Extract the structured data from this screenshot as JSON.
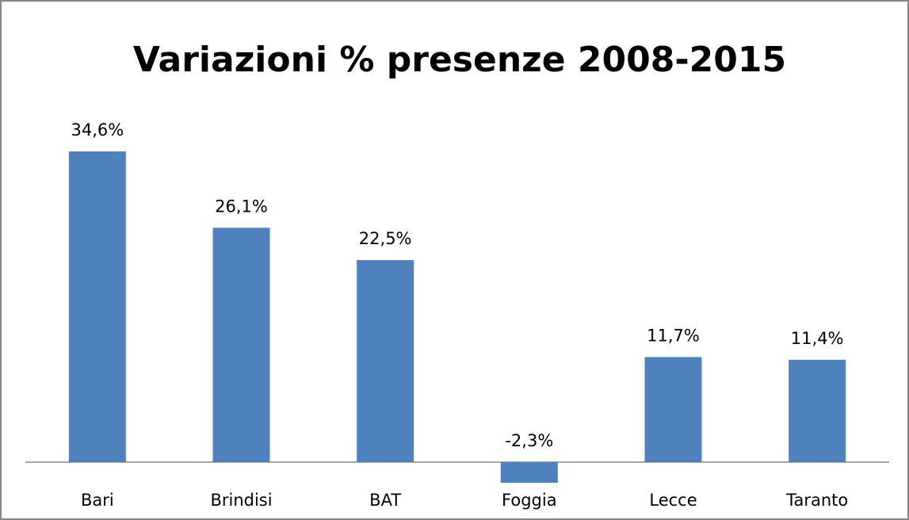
{
  "chart_data": {
    "type": "bar",
    "title": "Variazioni % presenze 2008-2015",
    "categories": [
      "Bari",
      "Brindisi",
      "BAT",
      "Foggia",
      "Lecce",
      "Taranto"
    ],
    "values": [
      34.6,
      26.1,
      22.5,
      -2.3,
      11.7,
      11.4
    ],
    "value_labels": [
      "34,6%",
      "26,1%",
      "22,5%",
      "-2,3%",
      "11,7%",
      "11,4%"
    ],
    "color": "#4f81bd"
  }
}
